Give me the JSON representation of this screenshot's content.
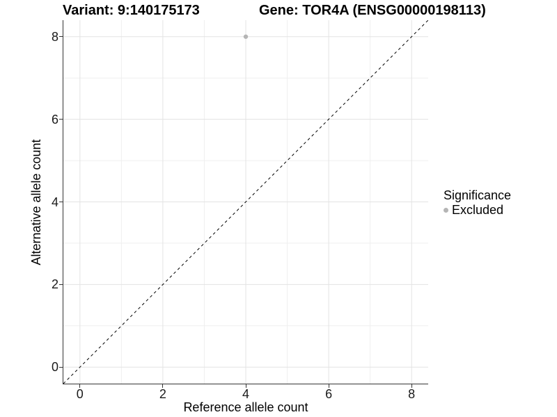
{
  "chart_data": {
    "type": "scatter",
    "titles": [
      "Variant: 9:140175173",
      "Gene: TOR4A (ENSG00000198113)"
    ],
    "xlabel": "Reference allele count",
    "ylabel": "Alternative allele count",
    "xlim": [
      -0.4,
      8.4
    ],
    "ylim": [
      -0.4,
      8.4
    ],
    "xticks": [
      0,
      2,
      4,
      6,
      8
    ],
    "yticks": [
      0,
      2,
      4,
      6,
      8
    ],
    "xticks_minor": [
      1,
      3,
      5,
      7
    ],
    "yticks_minor": [
      1,
      3,
      5,
      7
    ],
    "grid": "major and minor gridlines, no top/right border",
    "points": [
      {
        "x": 4,
        "y": 8,
        "series": "Excluded"
      }
    ],
    "reference_line": {
      "slope": 1,
      "intercept": 0,
      "style": "dashed",
      "color": "#000000",
      "width": 1
    },
    "legend": {
      "title": "Significance",
      "position": "right",
      "entries": [
        {
          "label": "Excluded",
          "color": "#b5b5b5"
        }
      ]
    },
    "colors": {
      "background": "#ffffff",
      "point_excluded": "#b5b5b5",
      "grid_major": "#e3e3e3",
      "grid_minor": "#efefef",
      "axis_line": "#333333",
      "tick_mark": "#333333",
      "text": "#000000"
    }
  }
}
